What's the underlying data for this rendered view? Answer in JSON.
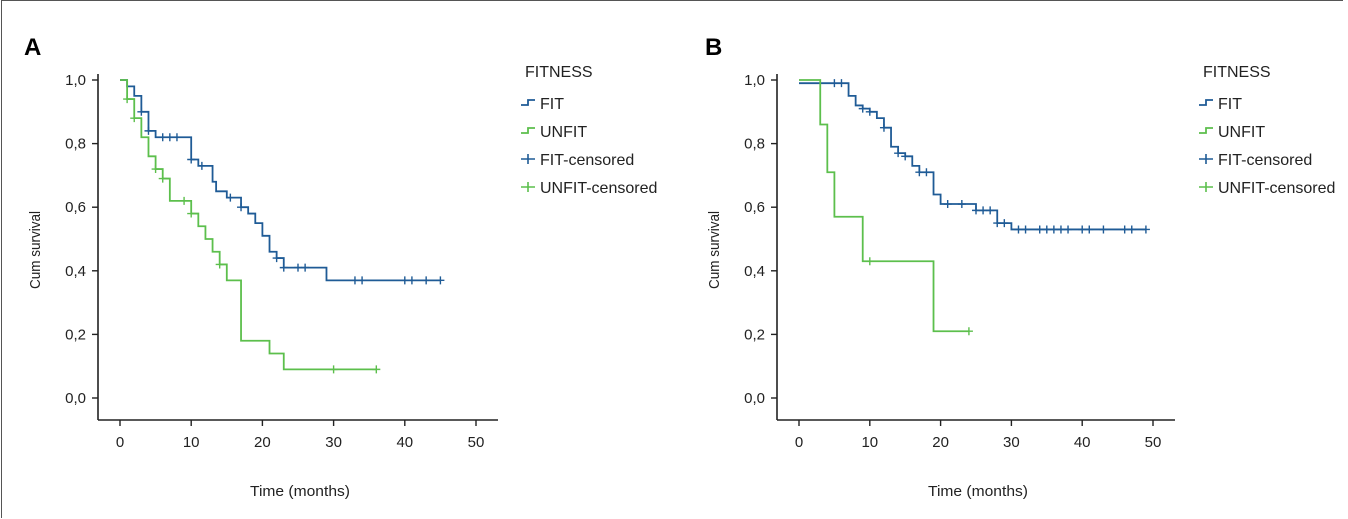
{
  "colors": {
    "fit": "#1f5b96",
    "unfit": "#5cbf4c",
    "axis": "#222222"
  },
  "chart_data": [
    {
      "type": "line",
      "panel_label": "A",
      "xlabel": "Time (months)",
      "ylabel": "Cum survival",
      "xlim": [
        0,
        50
      ],
      "ylim": [
        0,
        1
      ],
      "xticks": [
        0,
        10,
        20,
        30,
        40,
        50
      ],
      "xtick_labels": [
        "0",
        "10",
        "20",
        "30",
        "40",
        "50"
      ],
      "yticks": [
        0,
        0.2,
        0.4,
        0.6,
        0.8,
        1.0
      ],
      "ytick_labels": [
        "0,0",
        "0,2",
        "0,4",
        "0,6",
        "0,8",
        "1,0"
      ],
      "legend": {
        "title": "FITNESS",
        "items": [
          {
            "label": "FIT",
            "series": "fit",
            "kind": "step"
          },
          {
            "label": "UNFIT",
            "series": "unfit",
            "kind": "step"
          },
          {
            "label": "FIT-censored",
            "series": "fit",
            "kind": "censor"
          },
          {
            "label": "UNFIT-censored",
            "series": "unfit",
            "kind": "censor"
          }
        ]
      },
      "series": [
        {
          "key": "fit",
          "steps": [
            [
              0,
              1.0
            ],
            [
              1,
              0.98
            ],
            [
              2,
              0.95
            ],
            [
              3,
              0.9
            ],
            [
              4,
              0.84
            ],
            [
              5,
              0.82
            ],
            [
              10,
              0.75
            ],
            [
              11,
              0.73
            ],
            [
              13,
              0.68
            ],
            [
              13.5,
              0.65
            ],
            [
              15,
              0.63
            ],
            [
              17,
              0.6
            ],
            [
              18,
              0.58
            ],
            [
              19,
              0.55
            ],
            [
              20,
              0.51
            ],
            [
              21,
              0.46
            ],
            [
              22,
              0.44
            ],
            [
              23,
              0.41
            ],
            [
              29,
              0.37
            ]
          ],
          "end_x": 45,
          "censored": [
            [
              3,
              0.9
            ],
            [
              4,
              0.84
            ],
            [
              6,
              0.82
            ],
            [
              7,
              0.82
            ],
            [
              8,
              0.82
            ],
            [
              10,
              0.75
            ],
            [
              11.5,
              0.73
            ],
            [
              15.5,
              0.63
            ],
            [
              17,
              0.6
            ],
            [
              22,
              0.44
            ],
            [
              23,
              0.41
            ],
            [
              25,
              0.41
            ],
            [
              26,
              0.41
            ],
            [
              33,
              0.37
            ],
            [
              34,
              0.37
            ],
            [
              40,
              0.37
            ],
            [
              41,
              0.37
            ],
            [
              43,
              0.37
            ],
            [
              45,
              0.37
            ]
          ]
        },
        {
          "key": "unfit",
          "steps": [
            [
              0,
              1.0
            ],
            [
              1,
              0.94
            ],
            [
              2,
              0.88
            ],
            [
              3,
              0.82
            ],
            [
              4,
              0.76
            ],
            [
              5,
              0.72
            ],
            [
              6,
              0.69
            ],
            [
              7,
              0.62
            ],
            [
              10,
              0.58
            ],
            [
              11,
              0.54
            ],
            [
              12,
              0.5
            ],
            [
              13,
              0.46
            ],
            [
              14,
              0.42
            ],
            [
              15,
              0.37
            ],
            [
              17,
              0.18
            ],
            [
              21,
              0.14
            ],
            [
              23,
              0.09
            ]
          ],
          "end_x": 36,
          "censored": [
            [
              1,
              0.94
            ],
            [
              2,
              0.88
            ],
            [
              5,
              0.72
            ],
            [
              6,
              0.69
            ],
            [
              9,
              0.62
            ],
            [
              10,
              0.58
            ],
            [
              14,
              0.42
            ],
            [
              30,
              0.09
            ],
            [
              36,
              0.09
            ]
          ]
        }
      ]
    },
    {
      "type": "line",
      "panel_label": "B",
      "xlabel": "Time (months)",
      "ylabel": "Cum survival",
      "xlim": [
        0,
        50
      ],
      "ylim": [
        0,
        1
      ],
      "xticks": [
        0,
        10,
        20,
        30,
        40,
        50
      ],
      "xtick_labels": [
        "0",
        "10",
        "20",
        "30",
        "40",
        "50"
      ],
      "yticks": [
        0,
        0.2,
        0.4,
        0.6,
        0.8,
        1.0
      ],
      "ytick_labels": [
        "0,0",
        "0,2",
        "0,4",
        "0,6",
        "0,8",
        "1,0"
      ],
      "legend": {
        "title": "FITNESS",
        "items": [
          {
            "label": "FIT",
            "series": "fit",
            "kind": "step"
          },
          {
            "label": "UNFIT",
            "series": "unfit",
            "kind": "step"
          },
          {
            "label": "FIT-censored",
            "series": "fit",
            "kind": "censor"
          },
          {
            "label": "UNFIT-censored",
            "series": "unfit",
            "kind": "censor"
          }
        ]
      },
      "series": [
        {
          "key": "fit",
          "steps": [
            [
              0,
              0.99
            ],
            [
              7,
              0.95
            ],
            [
              8,
              0.92
            ],
            [
              9,
              0.91
            ],
            [
              10,
              0.9
            ],
            [
              11,
              0.88
            ],
            [
              12,
              0.85
            ],
            [
              13,
              0.79
            ],
            [
              14,
              0.77
            ],
            [
              15,
              0.76
            ],
            [
              16,
              0.73
            ],
            [
              17,
              0.71
            ],
            [
              19,
              0.64
            ],
            [
              20,
              0.61
            ],
            [
              25,
              0.59
            ],
            [
              28,
              0.55
            ],
            [
              30,
              0.53
            ]
          ],
          "end_x": 49,
          "censored": [
            [
              5,
              0.99
            ],
            [
              6,
              0.99
            ],
            [
              9,
              0.91
            ],
            [
              10,
              0.9
            ],
            [
              12,
              0.85
            ],
            [
              14,
              0.77
            ],
            [
              15,
              0.76
            ],
            [
              17,
              0.71
            ],
            [
              18,
              0.71
            ],
            [
              21,
              0.61
            ],
            [
              23,
              0.61
            ],
            [
              25,
              0.59
            ],
            [
              26,
              0.59
            ],
            [
              27,
              0.59
            ],
            [
              28,
              0.55
            ],
            [
              29,
              0.55
            ],
            [
              31,
              0.53
            ],
            [
              32,
              0.53
            ],
            [
              34,
              0.53
            ],
            [
              35,
              0.53
            ],
            [
              36,
              0.53
            ],
            [
              37,
              0.53
            ],
            [
              38,
              0.53
            ],
            [
              40,
              0.53
            ],
            [
              41,
              0.53
            ],
            [
              43,
              0.53
            ],
            [
              46,
              0.53
            ],
            [
              47,
              0.53
            ],
            [
              49,
              0.53
            ]
          ]
        },
        {
          "key": "unfit",
          "steps": [
            [
              0,
              1.0
            ],
            [
              3,
              0.86
            ],
            [
              4,
              0.71
            ],
            [
              5,
              0.57
            ],
            [
              9,
              0.43
            ],
            [
              19,
              0.21
            ]
          ],
          "end_x": 24,
          "censored": [
            [
              10,
              0.43
            ],
            [
              24,
              0.21
            ]
          ]
        }
      ]
    }
  ]
}
